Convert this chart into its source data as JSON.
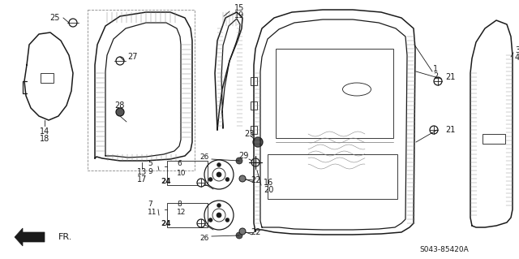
{
  "bg_color": "#ffffff",
  "diagram_code": "S043-85420A",
  "dark": "#1a1a1a",
  "gray": "#888888",
  "lw_main": 1.0,
  "lw_thin": 0.6,
  "figsize": [
    6.4,
    3.19
  ],
  "dpi": 100
}
